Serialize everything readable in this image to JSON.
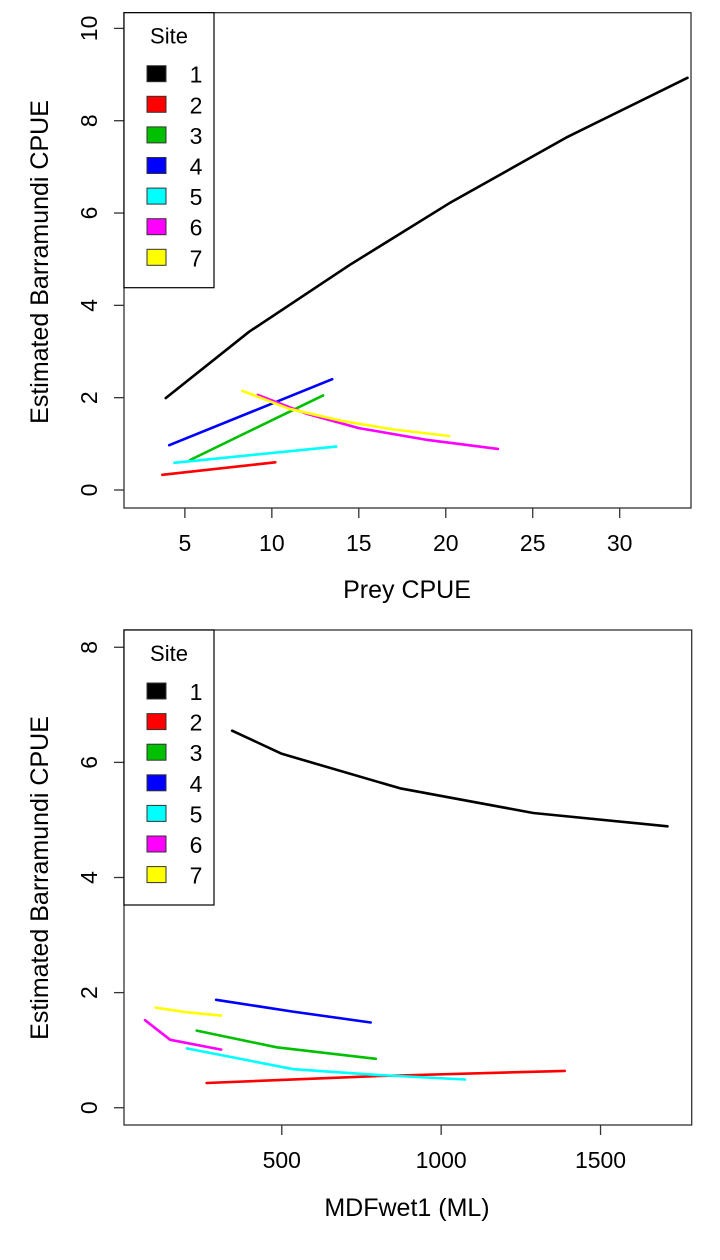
{
  "chart_data": [
    {
      "type": "line",
      "xlabel": "Prey CPUE",
      "ylabel": "Estimated Barramundi CPUE",
      "xlim": [
        1.5,
        34.1
      ],
      "ylim": [
        -0.39,
        10.34
      ],
      "xticks": [
        5,
        10,
        15,
        20,
        25,
        30
      ],
      "yticks": [
        0,
        2,
        4,
        6,
        8,
        10
      ],
      "grid": false,
      "legend": {
        "title": "Site",
        "placement": "top-left"
      },
      "series": [
        {
          "name": "1",
          "color": "#000000",
          "x": [
            3.9,
            8.7,
            14.5,
            20.2,
            27,
            33.9
          ],
          "y": [
            1.99,
            3.43,
            4.88,
            6.21,
            7.65,
            8.93
          ]
        },
        {
          "name": "2",
          "color": "#ff0000",
          "x": [
            3.7,
            10.2
          ],
          "y": [
            0.33,
            0.6
          ]
        },
        {
          "name": "3",
          "color": "#00c000",
          "x": [
            5.3,
            12.95
          ],
          "y": [
            0.65,
            2.05
          ]
        },
        {
          "name": "4",
          "color": "#0000ff",
          "x": [
            4.1,
            13.47
          ],
          "y": [
            0.97,
            2.4
          ]
        },
        {
          "name": "5",
          "color": "#00ffff",
          "x": [
            4.4,
            13.7
          ],
          "y": [
            0.59,
            0.94
          ]
        },
        {
          "name": "6",
          "color": "#ff00ff",
          "x": [
            9.2,
            12,
            15,
            19,
            23
          ],
          "y": [
            2.06,
            1.65,
            1.34,
            1.08,
            0.89
          ]
        },
        {
          "name": "7",
          "color": "#ffff00",
          "x": [
            8.3,
            11,
            14,
            17,
            20.2
          ],
          "y": [
            2.15,
            1.76,
            1.5,
            1.31,
            1.17
          ]
        }
      ]
    },
    {
      "type": "line",
      "xlabel": "MDFwet1 (ML)",
      "ylabel": "Estimated Barramundi CPUE",
      "xlim": [
        5,
        1786
      ],
      "ylim": [
        -0.3,
        8.3
      ],
      "xticks": [
        500,
        1000,
        1500
      ],
      "yticks": [
        0,
        2,
        4,
        6,
        8
      ],
      "grid": false,
      "legend": {
        "title": "Site",
        "placement": "top-left"
      },
      "series": [
        {
          "name": "1",
          "color": "#000000",
          "x": [
            344,
            500,
            871,
            1289,
            1710
          ],
          "y": [
            6.55,
            6.15,
            5.55,
            5.12,
            4.89
          ]
        },
        {
          "name": "2",
          "color": "#ff0000",
          "x": [
            264,
            800,
            1388
          ],
          "y": [
            0.43,
            0.55,
            0.64
          ]
        },
        {
          "name": "3",
          "color": "#00c000",
          "x": [
            233,
            484,
            795
          ],
          "y": [
            1.34,
            1.05,
            0.85
          ]
        },
        {
          "name": "4",
          "color": "#0000ff",
          "x": [
            294,
            535,
            779
          ],
          "y": [
            1.875,
            1.67,
            1.48
          ]
        },
        {
          "name": "5",
          "color": "#00ffff",
          "x": [
            202,
            536,
            798,
            1075
          ],
          "y": [
            1.03,
            0.67,
            0.57,
            0.49
          ]
        },
        {
          "name": "6",
          "color": "#ff00ff",
          "x": [
            71,
            150,
            310
          ],
          "y": [
            1.52,
            1.18,
            1.01
          ]
        },
        {
          "name": "7",
          "color": "#ffff00",
          "x": [
            104,
            200,
            310
          ],
          "y": [
            1.74,
            1.66,
            1.6
          ]
        }
      ]
    }
  ]
}
